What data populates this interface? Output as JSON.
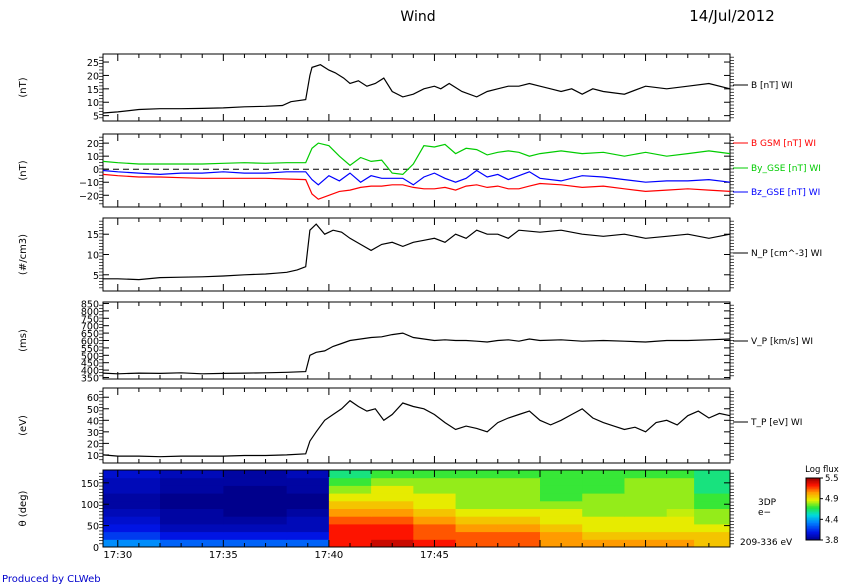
{
  "header": {
    "mission": "Wind",
    "date": "14/Jul/2012"
  },
  "footer": {
    "credit": "Produced by CLWeb"
  },
  "x_axis": {
    "range_minutes": [
      29.3,
      59.0
    ],
    "ticks": [
      {
        "m": 30,
        "label": "17:30"
      },
      {
        "m": 35,
        "label": "17:35"
      },
      {
        "m": 40,
        "label": "17:40"
      },
      {
        "m": 45,
        "label": "17:45"
      }
    ]
  },
  "chart_data": [
    {
      "id": "B",
      "type": "line",
      "ylabel": "(nT)",
      "ylim": [
        3,
        28
      ],
      "yticks": [
        5,
        10,
        15,
        20,
        25
      ],
      "series": [
        {
          "name": "B [nT] WI",
          "color": "#000000",
          "x": [
            29.3,
            30,
            31,
            32,
            33,
            34,
            35,
            36,
            37,
            37.8,
            38.2,
            38.9,
            39.1,
            39.2,
            39.6,
            40,
            40.3,
            40.7,
            41,
            41.4,
            41.8,
            42.2,
            42.6,
            43,
            43.5,
            44,
            44.5,
            45,
            45.3,
            45.7,
            46.3,
            47,
            47.5,
            48,
            48.5,
            49,
            49.5,
            50,
            50.5,
            51,
            51.5,
            52,
            52.5,
            53,
            54,
            55,
            56,
            57,
            58,
            59
          ],
          "y": [
            6,
            6.4,
            7.3,
            7.6,
            7.6,
            7.7,
            7.9,
            8.3,
            8.5,
            8.8,
            10.2,
            11,
            20,
            23,
            24,
            22,
            21,
            19,
            17,
            18,
            16,
            17,
            19,
            14,
            12,
            13,
            15,
            16,
            15,
            17,
            14,
            12,
            14,
            15,
            16,
            16,
            17,
            16,
            15,
            14,
            15,
            13,
            15,
            14,
            13,
            16,
            15,
            16,
            17,
            15
          ]
        }
      ],
      "legend": [
        {
          "label": "B [nT] WI",
          "color": "#000000"
        }
      ]
    },
    {
      "id": "Bgse",
      "type": "line",
      "ylabel": "(nT)",
      "ylim": [
        -29,
        27
      ],
      "yticks": [
        20,
        10,
        0,
        -10,
        -20
      ],
      "ytick_labels": [
        "20",
        "10",
        "0",
        "−10",
        "−20"
      ],
      "zero_dashed": true,
      "series": [
        {
          "name": "B GSM [nT] WI",
          "color": "#ff0000",
          "x": [
            29.3,
            30,
            31,
            32,
            33,
            34,
            35,
            36,
            37,
            38,
            38.9,
            39.2,
            39.5,
            40,
            40.5,
            41,
            41.5,
            42,
            42.5,
            43,
            43.5,
            44,
            44.5,
            45,
            45.5,
            46,
            46.5,
            47,
            47.5,
            48,
            48.5,
            49,
            49.5,
            50,
            51,
            52,
            53,
            54,
            55,
            56,
            57,
            58,
            59
          ],
          "y": [
            -4,
            -5,
            -6,
            -6,
            -6.5,
            -7,
            -7,
            -7,
            -7,
            -7.5,
            -8,
            -19,
            -23,
            -20,
            -17,
            -16,
            -14,
            -13,
            -13,
            -12,
            -12,
            -14,
            -15,
            -15,
            -14,
            -16,
            -13,
            -12,
            -14,
            -13,
            -15,
            -15,
            -13,
            -11,
            -12,
            -14,
            -13,
            -15,
            -17,
            -16,
            -15,
            -16,
            -17
          ]
        },
        {
          "name": "By_GSE [nT] WI",
          "color": "#00cc00",
          "x": [
            29.3,
            30,
            31,
            32,
            33,
            34,
            35,
            36,
            37,
            38,
            38.9,
            39.2,
            39.5,
            40,
            40.5,
            41,
            41.5,
            42,
            42.5,
            43,
            43.5,
            44,
            44.5,
            45,
            45.5,
            46,
            46.5,
            47,
            47.5,
            48,
            48.5,
            49,
            49.5,
            50,
            51,
            52,
            53,
            54,
            55,
            56,
            57,
            58,
            59
          ],
          "y": [
            6,
            5,
            4,
            4,
            4,
            4,
            4.5,
            5,
            4.5,
            5,
            5,
            16,
            20,
            18,
            10,
            3,
            9,
            6,
            7,
            -3,
            -4,
            4,
            18,
            17,
            19,
            12,
            16,
            15,
            11,
            13,
            14,
            13,
            10,
            12,
            14,
            12,
            13,
            10,
            13,
            10,
            12,
            14,
            12
          ]
        },
        {
          "name": "Bz_GSE [nT] WI",
          "color": "#0000ff",
          "x": [
            29.3,
            30,
            31,
            32,
            33,
            34,
            35,
            36,
            37,
            38,
            38.9,
            39.2,
            39.5,
            40,
            40.5,
            41,
            41.5,
            42,
            42.5,
            43,
            43.5,
            44,
            44.5,
            45,
            45.5,
            46,
            46.5,
            47,
            47.5,
            48,
            48.5,
            49,
            49.5,
            50,
            51,
            52,
            53,
            54,
            55,
            56,
            57,
            58,
            59
          ],
          "y": [
            -1,
            -2,
            -3,
            -4,
            -3,
            -3,
            -2,
            -3,
            -3,
            -2,
            -2,
            -8,
            -12,
            -5,
            -9,
            -3,
            -10,
            -5,
            -7,
            -7,
            -7,
            -12,
            -6,
            -3,
            -7,
            -10,
            -7,
            -1,
            -6,
            -4,
            -8,
            -5,
            -2,
            -7,
            -9,
            -5,
            -6,
            -8,
            -10,
            -9,
            -9,
            -8,
            -10
          ]
        }
      ],
      "legend": [
        {
          "label": "B GSM [nT] WI",
          "color": "#ff0000"
        },
        {
          "label": "By_GSE [nT] WI",
          "color": "#00cc00"
        },
        {
          "label": "Bz_GSE [nT] WI",
          "color": "#0000ff"
        }
      ]
    },
    {
      "id": "Np",
      "type": "line",
      "ylabel": "(#/cm3)",
      "ylim": [
        1,
        19
      ],
      "yticks": [
        5,
        10,
        15
      ],
      "series": [
        {
          "name": "N_P [cm^-3] WI",
          "color": "#000000",
          "x": [
            29.3,
            30,
            31,
            32,
            33,
            34,
            35,
            36,
            37,
            37.5,
            38,
            38.5,
            38.9,
            39.1,
            39.4,
            39.8,
            40.2,
            40.6,
            41,
            41.5,
            42,
            42.5,
            43,
            43.5,
            44,
            44.5,
            45,
            45.5,
            46,
            46.5,
            47,
            47.5,
            48,
            48.5,
            49,
            50,
            51,
            52,
            53,
            54,
            55,
            56,
            57,
            58,
            59
          ],
          "y": [
            4,
            4,
            3.8,
            4.3,
            4.4,
            4.5,
            4.7,
            5,
            5.2,
            5.4,
            5.6,
            6.2,
            7,
            16,
            17.5,
            15,
            16,
            15.5,
            14,
            12.5,
            11,
            12.5,
            13,
            12,
            13,
            13.5,
            14,
            13,
            15,
            14,
            16,
            15,
            15,
            14,
            16,
            15.5,
            16,
            15,
            14.5,
            15,
            14,
            14.5,
            15,
            14,
            15
          ]
        }
      ],
      "legend": [
        {
          "label": "N_P [cm^-3] WI",
          "color": "#000000"
        }
      ]
    },
    {
      "id": "Vp",
      "type": "line",
      "ylabel": "(ms)",
      "ylim": [
        340,
        860
      ],
      "yticks": [
        350,
        400,
        450,
        500,
        550,
        600,
        650,
        700,
        750,
        800,
        850
      ],
      "series": [
        {
          "name": "V_P [km/s] WI",
          "color": "#000000",
          "x": [
            29.3,
            30,
            31,
            32,
            33,
            34,
            35,
            36,
            37,
            38,
            38.9,
            39.1,
            39.4,
            39.8,
            40.2,
            40.6,
            41,
            41.5,
            42,
            42.5,
            43,
            43.5,
            44,
            44.5,
            45,
            45.5,
            46,
            46.5,
            47,
            47.5,
            48,
            48.5,
            49,
            49.5,
            50,
            51,
            52,
            53,
            54,
            55,
            56,
            57,
            58,
            59
          ],
          "y": [
            380,
            375,
            380,
            378,
            382,
            375,
            378,
            380,
            382,
            385,
            390,
            500,
            520,
            530,
            560,
            580,
            600,
            610,
            620,
            625,
            640,
            650,
            620,
            610,
            600,
            605,
            600,
            600,
            595,
            590,
            600,
            605,
            595,
            610,
            600,
            605,
            595,
            600,
            595,
            590,
            600,
            600,
            605,
            610
          ]
        }
      ],
      "legend": [
        {
          "label": "V_P [km/s] WI",
          "color": "#000000"
        }
      ]
    },
    {
      "id": "Tp",
      "type": "line",
      "ylabel": "(eV)",
      "ylim": [
        3,
        68
      ],
      "yticks": [
        10,
        20,
        30,
        40,
        50,
        60
      ],
      "series": [
        {
          "name": "T_P [eV] WI",
          "color": "#000000",
          "x": [
            29.3,
            30,
            31,
            32,
            33,
            34,
            35,
            36,
            37,
            38,
            38.9,
            39.1,
            39.4,
            39.8,
            40.2,
            40.6,
            41,
            41.4,
            41.8,
            42.2,
            42.6,
            43,
            43.5,
            44,
            44.5,
            45,
            45.5,
            46,
            46.5,
            47,
            47.5,
            48,
            48.5,
            49,
            49.5,
            50,
            50.5,
            51,
            51.5,
            52,
            52.5,
            53,
            53.5,
            54,
            54.5,
            55,
            55.5,
            56,
            56.5,
            57,
            57.5,
            58,
            58.5,
            59
          ],
          "y": [
            10,
            9,
            9,
            8.5,
            9,
            9,
            9,
            9.5,
            9.5,
            10,
            11,
            22,
            30,
            40,
            45,
            50,
            57,
            52,
            48,
            50,
            40,
            45,
            55,
            52,
            50,
            45,
            38,
            32,
            35,
            33,
            30,
            38,
            42,
            45,
            48,
            40,
            36,
            40,
            45,
            50,
            42,
            38,
            35,
            32,
            34,
            30,
            38,
            40,
            36,
            44,
            48,
            42,
            46,
            44
          ]
        }
      ],
      "legend": [
        {
          "label": "T_P [eV] WI",
          "color": "#000000"
        }
      ]
    },
    {
      "id": "PAD",
      "type": "heatmap",
      "ylabel": "θ (deg)",
      "ylim": [
        0,
        180
      ],
      "yticks": [
        0,
        50,
        100,
        150
      ],
      "right_labels": [
        "3DP",
        "e−",
        "209-336 eV"
      ],
      "colorbar": {
        "title": "Log flux",
        "ticks": [
          "5.5",
          "4.9",
          "4.4",
          "3.8"
        ],
        "range": [
          3.8,
          5.5
        ]
      },
      "x_edges": [
        29.3,
        32,
        35,
        38,
        40,
        42,
        44,
        46,
        48,
        50,
        52,
        54,
        56,
        57.3,
        59
      ],
      "y_edges": [
        0,
        18,
        36,
        54,
        72,
        90,
        108,
        126,
        144,
        162,
        180
      ],
      "values": [
        [
          4.3,
          4.2,
          4.2,
          4.2,
          5.3,
          5.4,
          5.3,
          5.2,
          5.2,
          5.1,
          5.1,
          5.1,
          5.1,
          5.0
        ],
        [
          4.1,
          4.0,
          4.0,
          4.0,
          5.3,
          5.3,
          5.2,
          5.2,
          5.2,
          5.1,
          5.0,
          5.0,
          5.0,
          5.0
        ],
        [
          4.0,
          3.9,
          3.9,
          3.9,
          5.3,
          5.3,
          5.2,
          5.1,
          5.1,
          5.0,
          4.9,
          4.9,
          4.9,
          4.9
        ],
        [
          3.95,
          3.85,
          3.85,
          3.9,
          5.2,
          5.2,
          5.1,
          5.0,
          5.0,
          4.9,
          4.9,
          4.9,
          4.9,
          4.8
        ],
        [
          3.9,
          3.85,
          3.8,
          3.85,
          5.1,
          5.1,
          5.0,
          4.9,
          4.9,
          4.9,
          4.8,
          4.8,
          4.85,
          4.8
        ],
        [
          3.85,
          3.8,
          3.8,
          3.8,
          5.0,
          5.0,
          4.9,
          4.8,
          4.8,
          4.8,
          4.8,
          4.8,
          4.8,
          4.7
        ],
        [
          3.85,
          3.8,
          3.8,
          3.8,
          4.9,
          4.9,
          4.9,
          4.8,
          4.8,
          4.7,
          4.8,
          4.8,
          4.8,
          4.7
        ],
        [
          3.9,
          3.85,
          3.8,
          3.85,
          4.8,
          4.9,
          4.8,
          4.8,
          4.8,
          4.7,
          4.7,
          4.8,
          4.8,
          4.6
        ],
        [
          3.9,
          3.85,
          3.85,
          3.85,
          4.7,
          4.8,
          4.8,
          4.8,
          4.8,
          4.7,
          4.7,
          4.8,
          4.8,
          4.6
        ],
        [
          3.95,
          3.9,
          3.85,
          3.9,
          4.6,
          4.7,
          4.7,
          4.7,
          4.7,
          4.7,
          4.7,
          4.7,
          4.7,
          4.6
        ]
      ]
    }
  ]
}
